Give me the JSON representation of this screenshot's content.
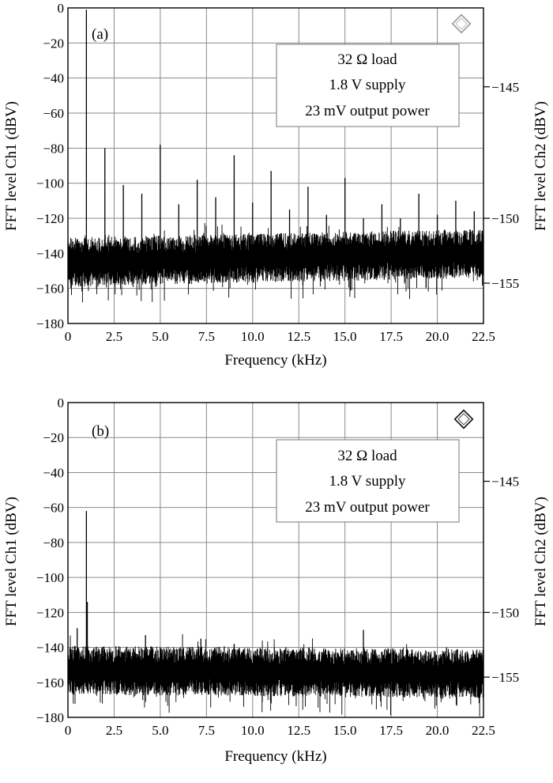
{
  "chart_data": [
    {
      "type": "line",
      "panel_label": "(a)",
      "xlabel": "Frequency (kHz)",
      "ylabel": "FFT level Ch1 (dBV)",
      "y2label": "FFT level Ch2 (dBV)",
      "xlim": [
        0,
        22.5
      ],
      "ylim": [
        -180,
        0
      ],
      "y2ticks": [
        "−145",
        "−150",
        "−155"
      ],
      "y2tick_positions": [
        -45,
        -120,
        -157
      ],
      "xticks": [
        "0",
        "2.5",
        "5.0",
        "7.5",
        "10.0",
        "12.5",
        "15.0",
        "17.5",
        "20.0",
        "22.5"
      ],
      "yticks": [
        "0",
        "−20",
        "−40",
        "−60",
        "−80",
        "−100",
        "−120",
        "−140",
        "−160",
        "−180"
      ],
      "annotations": [
        "32 Ω load",
        "1.8 V supply",
        "23 mV output power"
      ],
      "grid": true,
      "noise_floor": {
        "start": -145,
        "end": -140,
        "spread": 14
      },
      "peaks": [
        {
          "x": 1.0,
          "y": -1
        },
        {
          "x": 2.0,
          "y": -80
        },
        {
          "x": 3.0,
          "y": -101
        },
        {
          "x": 4.0,
          "y": -106
        },
        {
          "x": 5.0,
          "y": -78
        },
        {
          "x": 6.0,
          "y": -112
        },
        {
          "x": 7.0,
          "y": -98
        },
        {
          "x": 8.0,
          "y": -108
        },
        {
          "x": 9.0,
          "y": -84
        },
        {
          "x": 10.0,
          "y": -111
        },
        {
          "x": 11.0,
          "y": -93
        },
        {
          "x": 12.0,
          "y": -115
        },
        {
          "x": 13.0,
          "y": -102
        },
        {
          "x": 14.0,
          "y": -118
        },
        {
          "x": 15.0,
          "y": -97
        },
        {
          "x": 16.0,
          "y": -120
        },
        {
          "x": 17.0,
          "y": -112
        },
        {
          "x": 18.0,
          "y": -120
        },
        {
          "x": 19.0,
          "y": -106
        },
        {
          "x": 20.0,
          "y": -118
        },
        {
          "x": 21.0,
          "y": -110
        },
        {
          "x": 22.0,
          "y": -116
        }
      ]
    },
    {
      "type": "line",
      "panel_label": "(b)",
      "xlabel": "Frequency (kHz)",
      "ylabel": "FFT level Ch1 (dBV)",
      "y2label": "FFT level Ch2 (dBV)",
      "xlim": [
        0,
        22.5
      ],
      "ylim": [
        -180,
        0
      ],
      "y2ticks": [
        "−145",
        "−150",
        "−155"
      ],
      "y2tick_positions": [
        -45,
        -120,
        -157
      ],
      "xticks": [
        "0",
        "2.5",
        "5.0",
        "7.5",
        "10.0",
        "12.5",
        "15.0",
        "17.5",
        "20.0",
        "22.5"
      ],
      "yticks": [
        "0",
        "−20",
        "−40",
        "−60",
        "−80",
        "−100",
        "−120",
        "−140",
        "−160",
        "−180"
      ],
      "annotations": [
        "32 Ω load",
        "1.8 V supply",
        "23 mV output power"
      ],
      "grid": true,
      "noise_floor": {
        "start": -153,
        "end": -155,
        "spread": 14
      },
      "peaks": [
        {
          "x": 1.0,
          "y": -62
        },
        {
          "x": 1.05,
          "y": -114
        },
        {
          "x": 0.5,
          "y": -129
        },
        {
          "x": 4.2,
          "y": -133
        },
        {
          "x": 7.2,
          "y": -135
        },
        {
          "x": 9.0,
          "y": -138
        },
        {
          "x": 11.8,
          "y": -140
        },
        {
          "x": 16.0,
          "y": -130
        },
        {
          "x": 20.5,
          "y": -140
        }
      ]
    }
  ]
}
